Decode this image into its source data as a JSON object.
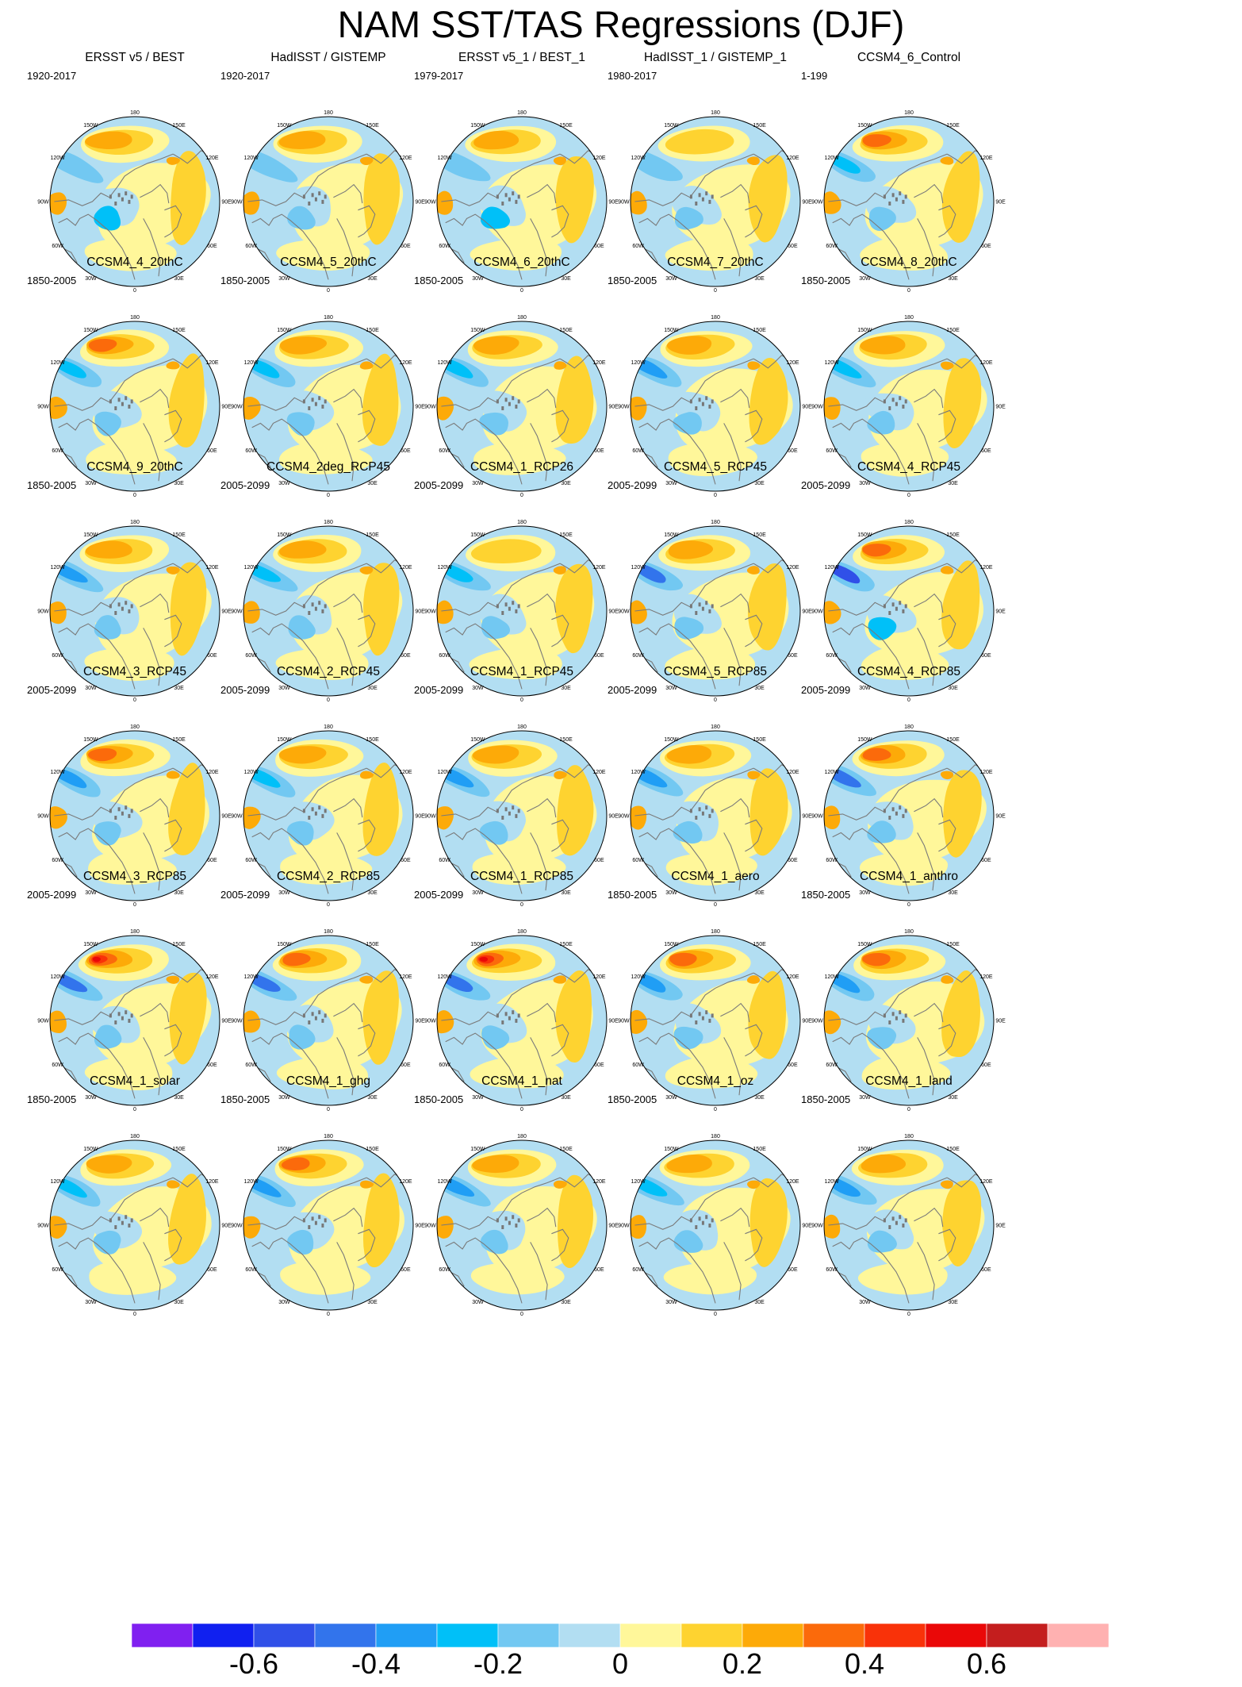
{
  "title": "NAM SST/TAS Regressions (DJF)",
  "colors": {
    "levels": [
      "#8020f0",
      "#1020f0",
      "#3050e8",
      "#3274ec",
      "#209ef5",
      "#00c0f8",
      "#72c8f2",
      "#b2def2",
      "#fff79a",
      "#fed330",
      "#fdaa08",
      "#fb6a0b",
      "#f93209",
      "#ea0808",
      "#c41e1e",
      "#ffb1b1"
    ],
    "coast": "#7a7a7a",
    "land_gray": "#777777"
  },
  "chart_data": {
    "type": "heatmap",
    "projection": "north-polar-stereographic",
    "lon_labels": [
      "180",
      "150E",
      "120E",
      "90E",
      "60E",
      "30E",
      "0",
      "30W",
      "60W",
      "90W",
      "120W",
      "150W"
    ],
    "colorbar": {
      "boundaries": [
        -0.7,
        -0.6,
        -0.5,
        -0.4,
        -0.3,
        -0.2,
        -0.1,
        0,
        0.1,
        0.2,
        0.3,
        0.4,
        0.5,
        0.6,
        0.7
      ],
      "labels": [
        "-0.6",
        "-0.4",
        "-0.2",
        "0",
        "0.2",
        "0.4",
        "0.6"
      ],
      "label_values": [
        -0.6,
        -0.4,
        -0.2,
        0,
        0.2,
        0.4,
        0.6
      ]
    },
    "panels": [
      {
        "title": "ERSST v5 / BEST",
        "years": "1920-2017",
        "pacific_warm": 0.38,
        "arctic_cold": -0.22,
        "pacific_cold": -0.2
      },
      {
        "title": "HadISST / GISTEMP",
        "years": "1920-2017",
        "pacific_warm": 0.32,
        "arctic_cold": -0.18,
        "pacific_cold": -0.15
      },
      {
        "title": "ERSST v5_1 / BEST_1",
        "years": "1979-2017",
        "pacific_warm": 0.3,
        "arctic_cold": -0.25,
        "pacific_cold": -0.18
      },
      {
        "title": "HadISST_1 / GISTEMP_1",
        "years": "1980-2017",
        "pacific_warm": 0.22,
        "arctic_cold": -0.2,
        "pacific_cold": -0.12
      },
      {
        "title": "CCSM4_6_Control",
        "years": "1-199",
        "pacific_warm": 0.45,
        "arctic_cold": -0.15,
        "pacific_cold": -0.28
      },
      {
        "title": "CCSM4_4_20thC",
        "years": "1850-2005",
        "pacific_warm": 0.45,
        "arctic_cold": -0.15,
        "pacific_cold": -0.28
      },
      {
        "title": "CCSM4_5_20thC",
        "years": "1850-2005",
        "pacific_warm": 0.35,
        "arctic_cold": -0.15,
        "pacific_cold": -0.3
      },
      {
        "title": "CCSM4_6_20thC",
        "years": "1850-2005",
        "pacific_warm": 0.35,
        "arctic_cold": -0.15,
        "pacific_cold": -0.3
      },
      {
        "title": "CCSM4_7_20thC",
        "years": "1850-2005",
        "pacific_warm": 0.32,
        "arctic_cold": -0.15,
        "pacific_cold": -0.32
      },
      {
        "title": "CCSM4_8_20thC",
        "years": "1850-2005",
        "pacific_warm": 0.32,
        "arctic_cold": -0.15,
        "pacific_cold": -0.3
      },
      {
        "title": "CCSM4_9_20thC",
        "years": "1850-2005",
        "pacific_warm": 0.35,
        "arctic_cold": -0.15,
        "pacific_cold": -0.32
      },
      {
        "title": "CCSM4_2deg_RCP45",
        "years": "2005-2099",
        "pacific_warm": 0.38,
        "arctic_cold": -0.18,
        "pacific_cold": -0.3
      },
      {
        "title": "CCSM4_1_RCP26",
        "years": "2005-2099",
        "pacific_warm": 0.28,
        "arctic_cold": -0.15,
        "pacific_cold": -0.3
      },
      {
        "title": "CCSM4_5_RCP45",
        "years": "2005-2099",
        "pacific_warm": 0.32,
        "arctic_cold": -0.15,
        "pacific_cold": -0.42
      },
      {
        "title": "CCSM4_4_RCP45",
        "years": "2005-2099",
        "pacific_warm": 0.4,
        "arctic_cold": -0.25,
        "pacific_cold": -0.55
      },
      {
        "title": "CCSM4_3_RCP45",
        "years": "2005-2099",
        "pacific_warm": 0.45,
        "arctic_cold": -0.15,
        "pacific_cold": -0.35
      },
      {
        "title": "CCSM4_2_RCP45",
        "years": "2005-2099",
        "pacific_warm": 0.35,
        "arctic_cold": -0.15,
        "pacific_cold": -0.3
      },
      {
        "title": "CCSM4_1_RCP45",
        "years": "2005-2099",
        "pacific_warm": 0.32,
        "arctic_cold": -0.15,
        "pacific_cold": -0.35
      },
      {
        "title": "CCSM4_5_RCP85",
        "years": "2005-2099",
        "pacific_warm": 0.38,
        "arctic_cold": -0.15,
        "pacific_cold": -0.32
      },
      {
        "title": "CCSM4_4_RCP85",
        "years": "2005-2099",
        "pacific_warm": 0.4,
        "arctic_cold": -0.2,
        "pacific_cold": -0.45
      },
      {
        "title": "CCSM4_3_RCP85",
        "years": "2005-2099",
        "pacific_warm": 0.6,
        "arctic_cold": -0.15,
        "pacific_cold": -0.45
      },
      {
        "title": "CCSM4_2_RCP85",
        "years": "2005-2099",
        "pacific_warm": 0.45,
        "arctic_cold": -0.2,
        "pacific_cold": -0.5
      },
      {
        "title": "CCSM4_1_RCP85",
        "years": "2005-2099",
        "pacific_warm": 0.65,
        "arctic_cold": -0.15,
        "pacific_cold": -0.5
      },
      {
        "title": "CCSM4_1_aero",
        "years": "1850-2005",
        "pacific_warm": 0.45,
        "arctic_cold": -0.15,
        "pacific_cold": -0.32
      },
      {
        "title": "CCSM4_1_anthro",
        "years": "1850-2005",
        "pacific_warm": 0.45,
        "arctic_cold": -0.15,
        "pacific_cold": -0.4
      },
      {
        "title": "CCSM4_1_solar",
        "years": "1850-2005",
        "pacific_warm": 0.35,
        "arctic_cold": -0.12,
        "pacific_cold": -0.25
      },
      {
        "title": "CCSM4_1_ghg",
        "years": "1850-2005",
        "pacific_warm": 0.4,
        "arctic_cold": -0.15,
        "pacific_cold": -0.32
      },
      {
        "title": "CCSM4_1_nat",
        "years": "1850-2005",
        "pacific_warm": 0.35,
        "arctic_cold": -0.18,
        "pacific_cold": -0.35
      },
      {
        "title": "CCSM4_1_oz",
        "years": "1850-2005",
        "pacific_warm": 0.35,
        "arctic_cold": -0.18,
        "pacific_cold": -0.3
      },
      {
        "title": "CCSM4_1_land",
        "years": "1850-2005",
        "pacific_warm": 0.35,
        "arctic_cold": -0.15,
        "pacific_cold": -0.32
      }
    ]
  }
}
